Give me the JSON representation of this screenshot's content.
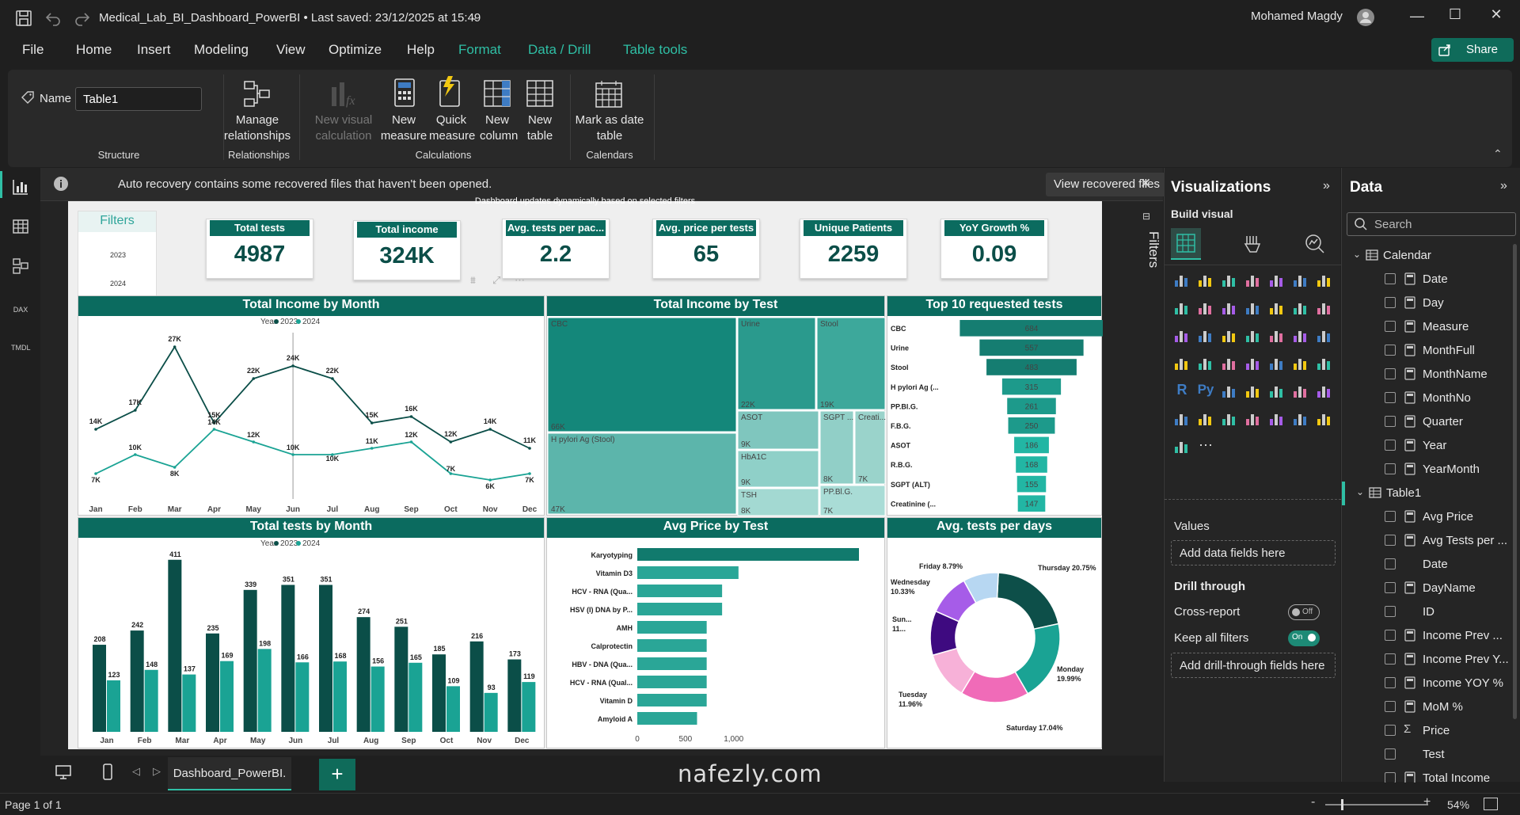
{
  "app": {
    "title": "Medical_Lab_BI_Dashboard_PowerBI • Last saved: 23/12/2025 at 15:49",
    "user": "Mohamed Magdy"
  },
  "menu": [
    {
      "label": "File"
    },
    {
      "label": "Home"
    },
    {
      "label": "Insert"
    },
    {
      "label": "Modeling"
    },
    {
      "label": "View"
    },
    {
      "label": "Optimize"
    },
    {
      "label": "Help"
    },
    {
      "label": "Format"
    },
    {
      "label": "Data / Drill"
    },
    {
      "label": "Table tools"
    }
  ],
  "share_label": "Share",
  "ribbon": {
    "name_label": "Name",
    "name_value": "Table1",
    "manage_relationships": "Manage relationships",
    "new_visual_calc": "New visual calculation",
    "new_measure": "New measure",
    "quick_measure": "Quick measure",
    "new_column": "New column",
    "new_table": "New table",
    "mark_date": "Mark as date table",
    "groups": {
      "structure": "Structure",
      "relationships": "Relationships",
      "calculations": "Calculations",
      "calendars": "Calendars"
    }
  },
  "banner": {
    "text": "Auto recovery contains some recovered files that haven't been opened.",
    "button": "View recovered files"
  },
  "dashboard": {
    "subtitle": "Dashboard updates dynamically based on selected filters",
    "filters": {
      "title": "Filters",
      "years": [
        "2023",
        "2024"
      ]
    },
    "kpis": [
      {
        "title": "Total tests",
        "value": "4987"
      },
      {
        "title": "Total income",
        "value": "324K"
      },
      {
        "title": "Avg. tests per pac...",
        "value": "2.2"
      },
      {
        "title": "Avg. price per tests",
        "value": "65"
      },
      {
        "title": "Unique Patients",
        "value": "2259"
      },
      {
        "title": "YoY Growth %",
        "value": "0.09"
      }
    ],
    "titles": {
      "income_month": "Total Income by Month",
      "income_test": "Total Income by Test",
      "top10": "Top 10 requested tests",
      "tests_month": "Total tests by Month",
      "avg_price": "Avg Price by Test",
      "avg_days": "Avg. tests per days"
    },
    "legend": {
      "label": "Year",
      "y2023": "2023",
      "y2024": "2024"
    }
  },
  "chart_data": [
    {
      "type": "line",
      "title": "Total Income by Month",
      "categories": [
        "Jan",
        "Feb",
        "Mar",
        "Apr",
        "May",
        "Jun",
        "Jul",
        "Aug",
        "Sep",
        "Oct",
        "Nov",
        "Dec"
      ],
      "series": [
        {
          "name": "2023",
          "values": [
            14,
            17,
            27,
            15,
            22,
            24,
            22,
            15,
            16,
            12,
            14,
            11
          ],
          "labels": [
            "14K",
            "17K",
            "27K",
            "15K",
            "22K",
            "24K",
            "22K",
            "15K",
            "16K",
            "12K",
            "14K",
            "11K"
          ]
        },
        {
          "name": "2024",
          "values": [
            7,
            10,
            8,
            14,
            12,
            10,
            10,
            11,
            12,
            7,
            6,
            7
          ],
          "labels": [
            "7K",
            "10K",
            "8K",
            "14K",
            "12K",
            "10K",
            "10K",
            "11K",
            "12K",
            "7K",
            "6K",
            "7K"
          ]
        }
      ]
    },
    {
      "type": "heatmap",
      "title": "Total Income by Test",
      "cells": [
        {
          "label": "CBC",
          "value": "66K"
        },
        {
          "label": "H pylori Ag (Stool)",
          "value": "47K"
        },
        {
          "label": "Urine",
          "value": "22K"
        },
        {
          "label": "Stool",
          "value": "19K"
        },
        {
          "label": "ASOT",
          "value": "9K"
        },
        {
          "label": "HbA1C",
          "value": "9K"
        },
        {
          "label": "TSH",
          "value": "8K"
        },
        {
          "label": "SGPT ...",
          "value": "8K"
        },
        {
          "label": "Creati...",
          "value": "7K"
        },
        {
          "label": "PP.Bl.G.",
          "value": "7K"
        }
      ]
    },
    {
      "type": "bar",
      "title": "Top 10 requested tests",
      "categories": [
        "CBC",
        "Urine",
        "Stool",
        "H pylori Ag (...",
        "PP.Bl.G.",
        "F.B.G.",
        "ASOT",
        "R.B.G.",
        "SGPT (ALT)",
        "Creatinine (..."
      ],
      "values": [
        684,
        557,
        483,
        315,
        261,
        250,
        186,
        168,
        155,
        147
      ]
    },
    {
      "type": "bar",
      "title": "Total tests by Month",
      "categories": [
        "Jan",
        "Feb",
        "Mar",
        "Apr",
        "May",
        "Jun",
        "Jul",
        "Aug",
        "Sep",
        "Oct",
        "Nov",
        "Dec"
      ],
      "series": [
        {
          "name": "2023",
          "values": [
            208,
            242,
            411,
            235,
            339,
            351,
            351,
            274,
            251,
            185,
            216,
            173
          ]
        },
        {
          "name": "2024",
          "values": [
            123,
            148,
            137,
            169,
            198,
            166,
            168,
            156,
            165,
            109,
            93,
            119
          ]
        }
      ]
    },
    {
      "type": "bar",
      "title": "Avg Price by Test",
      "categories": [
        "Karyotyping",
        "Vitamin D3",
        "HCV - RNA (Qua...",
        "HSV (I) DNA by P...",
        "AMH",
        "Calprotectin",
        "HBV - DNA (Qua...",
        "HCV - RNA (Qual...",
        "Vitamin D",
        "Amyloid A"
      ],
      "values": [
        2300,
        1050,
        880,
        880,
        720,
        720,
        720,
        720,
        720,
        620
      ],
      "xticks": [
        "0",
        "500",
        "1,000"
      ]
    },
    {
      "type": "pie",
      "title": "Avg. tests per days",
      "slices": [
        {
          "label": "Thursday",
          "value": 20.75,
          "text": "Thursday 20.75%"
        },
        {
          "label": "Monday",
          "value": 19.99,
          "text": "Monday 19.99%"
        },
        {
          "label": "Saturday",
          "value": 17.04,
          "text": "Saturday 17.04%"
        },
        {
          "label": "Tuesday",
          "value": 11.96,
          "text": "Tuesday 11.96%"
        },
        {
          "label": "Sunday",
          "value": 11,
          "text": "Sun... 11..."
        },
        {
          "label": "Wednesday",
          "value": 10.33,
          "text": "Wednesday 10.33%"
        },
        {
          "label": "Friday",
          "value": 8.79,
          "text": "Friday 8.79%"
        }
      ]
    }
  ],
  "viz_panel": {
    "title": "Visualizations",
    "build": "Build visual",
    "values": "Values",
    "add_data": "Add data fields here",
    "drill": "Drill through",
    "cross": "Cross-report",
    "cross_state": "Off",
    "keep": "Keep all filters",
    "keep_state": "On",
    "add_drill": "Add drill-through fields here",
    "r": "R",
    "py": "Py"
  },
  "filters_pane": "Filters",
  "data_panel": {
    "title": "Data",
    "search_placeholder": "Search",
    "tables": [
      {
        "name": "Calendar",
        "fields": [
          "Date",
          "Day",
          "Measure",
          "MonthFull",
          "MonthName",
          "MonthNo",
          "Quarter",
          "Year",
          "YearMonth"
        ]
      },
      {
        "name": "Table1",
        "fields": [
          "Avg Price",
          "Avg Tests per ...",
          "Date",
          "DayName",
          "ID",
          "Income Prev ...",
          "Income Prev Y...",
          "Income YOY %",
          "MoM %",
          "Price",
          "Test",
          "Total Income"
        ]
      }
    ]
  },
  "page_tab": "Dashboard_PowerBI.",
  "status": {
    "page": "Page 1 of 1",
    "zoom": "54%"
  },
  "watermark": "nafezly.com"
}
